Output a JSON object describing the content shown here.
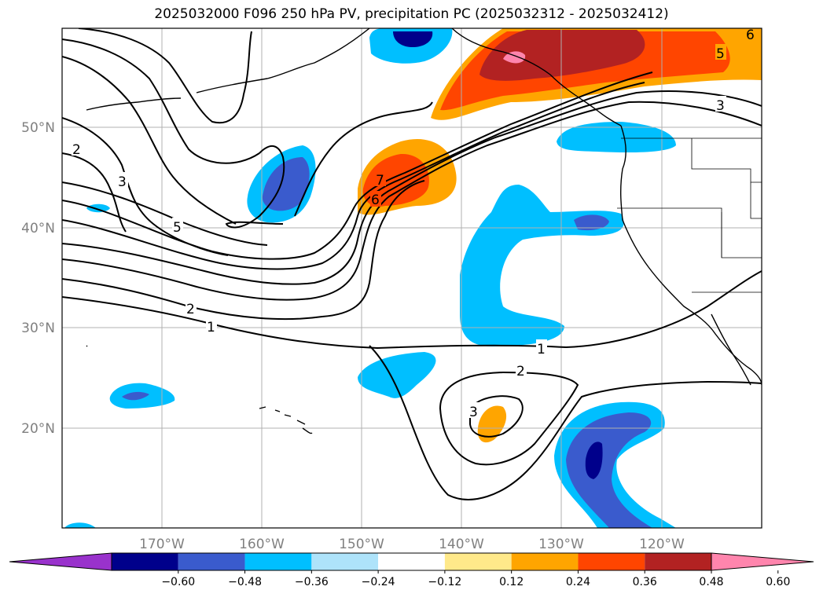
{
  "title": "2025032000 F096 250 hPa PV, precipitation PC (2025032312 - 2025032412)",
  "longitude_labels": [
    "170°W",
    "160°W",
    "150°W",
    "140°W",
    "130°W",
    "120°W"
  ],
  "latitude_labels": [
    "50°N",
    "40°N",
    "30°N",
    "20°N"
  ],
  "colorbar": {
    "ticks": [
      "−0.60",
      "−0.48",
      "−0.36",
      "−0.24",
      "−0.12",
      "0.12",
      "0.24",
      "0.36",
      "0.48",
      "0.60"
    ],
    "colors": [
      "#9932cc",
      "#00008b",
      "#3a5bcd",
      "#00bfff",
      "#aee3fa",
      "#ffffff",
      "#ffe98a",
      "#ffa500",
      "#ff4500",
      "#b22222",
      "#ff85ad"
    ]
  },
  "contour_labels": [
    "1",
    "2",
    "3",
    "5",
    "6",
    "7",
    "2",
    "3",
    "1",
    "2",
    "3",
    "5",
    "6"
  ],
  "colors": {
    "contour": "#000000",
    "grid": "#b0b0b0",
    "coast": "#000000"
  }
}
